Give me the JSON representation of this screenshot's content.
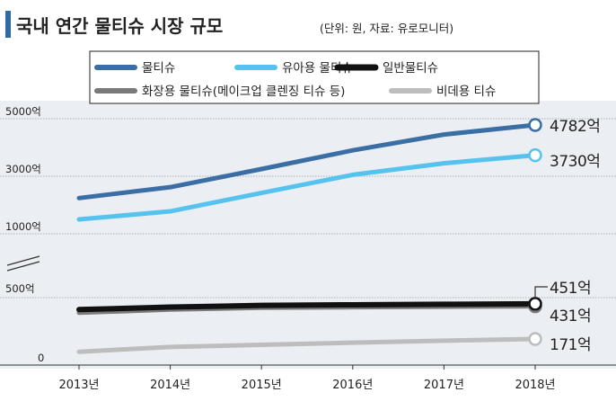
{
  "header": {
    "title": "국내 연간 물티슈 시장 규모",
    "note": "(단위: 원, 자료: 유로모니터)"
  },
  "colors": {
    "accent_bar": "#2f6aa3",
    "plot_bg": "#ebeef3",
    "grid": "#9aa1aa",
    "text": "#222222"
  },
  "chart_data": {
    "type": "line",
    "x": [
      "2013년",
      "2014년",
      "2015년",
      "2016년",
      "2017년",
      "2018년"
    ],
    "axis": {
      "broken": true,
      "upper_ticks": [
        {
          "value": 1000,
          "label": "1000억"
        },
        {
          "value": 3000,
          "label": "3000억"
        },
        {
          "value": 5000,
          "label": "5000억"
        }
      ],
      "lower_ticks": [
        {
          "value": 0,
          "label": "0"
        },
        {
          "value": 500,
          "label": "500억"
        }
      ],
      "upper_range": [
        1000,
        5000
      ],
      "lower_range": [
        0,
        500
      ]
    },
    "legend": {
      "placement": "top",
      "rows": [
        [
          {
            "series": 0,
            "text": "물티슈"
          },
          {
            "series": 1,
            "text": "유아용 물티슈"
          },
          {
            "series": 2,
            "text": "일반물티슈"
          }
        ],
        [
          {
            "series": 3,
            "text": "화장용 물티슈(메이크업 클렌징 티슈 등)"
          },
          {
            "series": 4,
            "text": "비데용 티슈"
          }
        ]
      ]
    },
    "series": [
      {
        "name": "물티슈",
        "panel": "upper",
        "color": "#3a6ea5",
        "width": 5,
        "values": [
          2240,
          2620,
          3250,
          3900,
          4450,
          4782
        ],
        "end_label": "4782억"
      },
      {
        "name": "유아용 물티슈",
        "panel": "upper",
        "color": "#56c3ef",
        "width": 5,
        "values": [
          1500,
          1780,
          2420,
          3050,
          3450,
          3730
        ],
        "end_label": "3730억"
      },
      {
        "name": "일반물티슈",
        "panel": "lower",
        "color": "#111111",
        "width": 6,
        "values": [
          405,
          425,
          438,
          443,
          447,
          451
        ],
        "end_label": "451억"
      },
      {
        "name": "화장용 물티슈(메이크업 클렌징 티슈 등)",
        "panel": "lower",
        "color": "#7a7a7a",
        "width": 5,
        "values": [
          380,
          405,
          420,
          424,
          428,
          431
        ],
        "end_label": "431억"
      },
      {
        "name": "비데용 티슈",
        "panel": "lower",
        "color": "#bdbdbd",
        "width": 5,
        "values": [
          70,
          108,
          125,
          142,
          158,
          171
        ],
        "end_label": "171억"
      }
    ]
  }
}
